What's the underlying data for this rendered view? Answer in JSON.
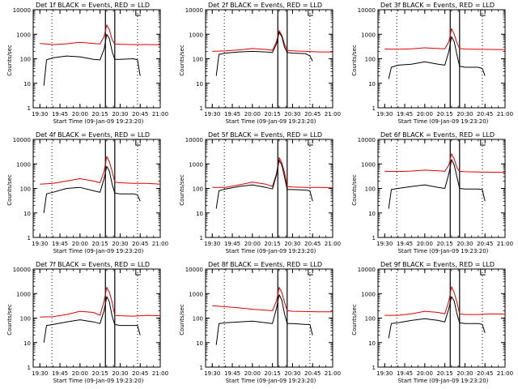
{
  "chart_data": [
    {
      "type": "line",
      "title": "Det 1f BLACK = Events, RED = LLD",
      "xlabel": "Start Time (09-Jan-09 19:23:20)",
      "ylabel": "Counts/sec",
      "yscale": "log",
      "ylim": [
        1,
        10000
      ],
      "xlim": [
        "19:25",
        "21:00"
      ],
      "x_tick_labels": [
        "19:30",
        "19:45",
        "20:00",
        "20:15",
        "20:30",
        "20:45",
        "21:00"
      ],
      "y_tick_labels": [
        "1",
        "10",
        "100",
        "1000",
        "10000"
      ],
      "flare_window": [
        "20:19",
        "20:26"
      ],
      "dotted_lines": [
        "19:39",
        "20:43"
      ],
      "series": [
        {
          "color": "#e00000",
          "x": [
            "19:30",
            "19:40",
            "19:50",
            "20:00",
            "20:10",
            "20:15",
            "20:18",
            "20:20",
            "20:22",
            "20:24",
            "20:26",
            "20:30",
            "20:40",
            "20:50",
            "21:00"
          ],
          "values": [
            420,
            380,
            410,
            470,
            420,
            400,
            800,
            2400,
            1500,
            600,
            400,
            390,
            380,
            380,
            370
          ]
        },
        {
          "color": "#000000",
          "x": [
            "19:33",
            "19:35",
            "19:40",
            "19:50",
            "20:00",
            "20:10",
            "20:15",
            "20:18",
            "20:20",
            "20:22",
            "20:24",
            "20:26",
            "20:30",
            "20:40",
            "20:43",
            "20:45"
          ],
          "values": [
            8,
            90,
            110,
            130,
            120,
            95,
            90,
            250,
            1000,
            650,
            200,
            95,
            95,
            100,
            90,
            20
          ]
        }
      ]
    },
    {
      "type": "line",
      "title": "Det 2f BLACK = Events, RED = LLD",
      "xlabel": "Start Time (09-Jan-09 19:23:20)",
      "ylabel": "Counts/sec",
      "yscale": "log",
      "ylim": [
        1,
        10000
      ],
      "xlim": [
        "19:25",
        "21:00"
      ],
      "x_tick_labels": [
        "19:30",
        "19:45",
        "20:00",
        "20:15",
        "20:30",
        "20:45",
        "21:00"
      ],
      "y_tick_labels": [
        "1",
        "10",
        "100",
        "1000",
        "10000"
      ],
      "flare_window": [
        "20:19",
        "20:26"
      ],
      "dotted_lines": [
        "19:39",
        "20:43"
      ],
      "series": [
        {
          "color": "#e00000",
          "x": [
            "19:30",
            "19:40",
            "19:50",
            "20:00",
            "20:10",
            "20:15",
            "20:18",
            "20:20",
            "20:22",
            "20:24",
            "20:26",
            "20:30",
            "20:40",
            "20:50",
            "21:00"
          ],
          "values": [
            200,
            210,
            230,
            260,
            240,
            220,
            500,
            1400,
            900,
            400,
            220,
            210,
            200,
            190,
            190
          ]
        },
        {
          "color": "#000000",
          "x": [
            "19:33",
            "19:35",
            "19:40",
            "19:50",
            "20:00",
            "20:10",
            "20:15",
            "20:18",
            "20:20",
            "20:22",
            "20:24",
            "20:26",
            "20:30",
            "20:40",
            "20:43",
            "20:45"
          ],
          "values": [
            20,
            150,
            170,
            190,
            200,
            190,
            180,
            400,
            1200,
            800,
            300,
            180,
            170,
            160,
            130,
            80
          ]
        }
      ]
    },
    {
      "type": "line",
      "title": "Det 3f BLACK = Events, RED = LLD",
      "xlabel": "Start Time (09-Jan-09 19:23:20)",
      "ylabel": "Counts/sec",
      "yscale": "log",
      "ylim": [
        1,
        10000
      ],
      "xlim": [
        "19:25",
        "21:00"
      ],
      "x_tick_labels": [
        "19:30",
        "19:45",
        "20:00",
        "20:15",
        "20:30",
        "20:45",
        "21:00"
      ],
      "y_tick_labels": [
        "1",
        "10",
        "100",
        "1000",
        "10000"
      ],
      "flare_window": [
        "20:19",
        "20:26"
      ],
      "dotted_lines": [
        "19:39",
        "20:43"
      ],
      "series": [
        {
          "color": "#e00000",
          "x": [
            "19:30",
            "19:40",
            "19:50",
            "20:00",
            "20:10",
            "20:15",
            "20:18",
            "20:20",
            "20:22",
            "20:24",
            "20:26",
            "20:30",
            "20:40",
            "20:50",
            "21:00"
          ],
          "values": [
            250,
            245,
            255,
            280,
            260,
            255,
            500,
            1700,
            1000,
            450,
            260,
            250,
            245,
            240,
            235
          ]
        },
        {
          "color": "#000000",
          "x": [
            "19:33",
            "19:35",
            "19:40",
            "19:50",
            "20:00",
            "20:10",
            "20:15",
            "20:18",
            "20:20",
            "20:22",
            "20:24",
            "20:26",
            "20:30",
            "20:40",
            "20:43",
            "20:45"
          ],
          "values": [
            15,
            45,
            55,
            60,
            75,
            60,
            55,
            200,
            800,
            500,
            150,
            50,
            45,
            45,
            40,
            20
          ]
        }
      ]
    },
    {
      "type": "line",
      "title": "Det 4f BLACK = Events, RED = LLD",
      "xlabel": "Start Time (09-Jan-09 19:23:20)",
      "ylabel": "Counts/sec",
      "yscale": "log",
      "ylim": [
        1,
        10000
      ],
      "xlim": [
        "19:25",
        "21:00"
      ],
      "x_tick_labels": [
        "19:30",
        "19:45",
        "20:00",
        "20:15",
        "20:30",
        "20:45",
        "21:00"
      ],
      "y_tick_labels": [
        "1",
        "10",
        "100",
        "1000",
        "10000"
      ],
      "flare_window": [
        "20:19",
        "20:26"
      ],
      "dotted_lines": [
        "19:39",
        "20:43"
      ],
      "series": [
        {
          "color": "#e00000",
          "x": [
            "19:30",
            "19:40",
            "19:50",
            "20:00",
            "20:10",
            "20:15",
            "20:18",
            "20:20",
            "20:22",
            "20:24",
            "20:26",
            "20:30",
            "20:40",
            "20:50",
            "21:00"
          ],
          "values": [
            150,
            160,
            200,
            250,
            200,
            170,
            500,
            2000,
            1200,
            500,
            180,
            170,
            160,
            160,
            150
          ]
        },
        {
          "color": "#000000",
          "x": [
            "19:33",
            "19:35",
            "19:40",
            "19:50",
            "20:00",
            "20:10",
            "20:15",
            "20:18",
            "20:20",
            "20:22",
            "20:24",
            "20:26",
            "20:30",
            "20:40",
            "20:43",
            "20:45"
          ],
          "values": [
            10,
            60,
            70,
            100,
            110,
            80,
            70,
            250,
            800,
            500,
            150,
            65,
            60,
            60,
            55,
            30
          ]
        }
      ]
    },
    {
      "type": "line",
      "title": "Det 5f BLACK = Events, RED = LLD",
      "xlabel": "Start Time (09-Jan-09 19:23:20)",
      "ylabel": "Counts/sec",
      "yscale": "log",
      "ylim": [
        1,
        10000
      ],
      "xlim": [
        "19:25",
        "21:00"
      ],
      "x_tick_labels": [
        "19:30",
        "19:45",
        "20:00",
        "20:15",
        "20:30",
        "20:45",
        "21:00"
      ],
      "y_tick_labels": [
        "1",
        "10",
        "100",
        "1000",
        "10000"
      ],
      "flare_window": [
        "20:19",
        "20:26"
      ],
      "dotted_lines": [
        "19:39",
        "20:43"
      ],
      "series": [
        {
          "color": "#e00000",
          "x": [
            "19:30",
            "19:40",
            "19:50",
            "20:00",
            "20:10",
            "20:15",
            "20:18",
            "20:20",
            "20:22",
            "20:24",
            "20:26",
            "20:30",
            "20:40",
            "20:50",
            "21:00"
          ],
          "values": [
            110,
            110,
            140,
            180,
            150,
            120,
            400,
            1800,
            1100,
            450,
            120,
            115,
            110,
            110,
            105
          ]
        },
        {
          "color": "#000000",
          "x": [
            "19:33",
            "19:35",
            "19:40",
            "19:50",
            "20:00",
            "20:10",
            "20:15",
            "20:18",
            "20:20",
            "20:22",
            "20:24",
            "20:26",
            "20:30",
            "20:40",
            "20:43",
            "20:45"
          ],
          "values": [
            15,
            80,
            95,
            120,
            140,
            110,
            95,
            350,
            1400,
            900,
            300,
            90,
            90,
            85,
            80,
            30
          ]
        }
      ]
    },
    {
      "type": "line",
      "title": "Det 6f BLACK = Events, RED = LLD",
      "xlabel": "Start Time (09-Jan-09 19:23:20)",
      "ylabel": "Counts/sec",
      "yscale": "log",
      "ylim": [
        1,
        10000
      ],
      "xlim": [
        "19:25",
        "21:00"
      ],
      "x_tick_labels": [
        "19:30",
        "19:45",
        "20:00",
        "20:15",
        "20:30",
        "20:45",
        "21:00"
      ],
      "y_tick_labels": [
        "1",
        "10",
        "100",
        "1000",
        "10000"
      ],
      "flare_window": [
        "20:19",
        "20:26"
      ],
      "dotted_lines": [
        "19:39",
        "20:43"
      ],
      "series": [
        {
          "color": "#e00000",
          "x": [
            "19:30",
            "19:40",
            "19:50",
            "20:00",
            "20:10",
            "20:15",
            "20:18",
            "20:20",
            "20:22",
            "20:24",
            "20:26",
            "20:30",
            "20:40",
            "20:50",
            "21:00"
          ],
          "values": [
            500,
            490,
            510,
            560,
            520,
            500,
            900,
            2600,
            1600,
            700,
            500,
            480,
            470,
            460,
            450
          ]
        },
        {
          "color": "#000000",
          "x": [
            "19:33",
            "19:35",
            "19:40",
            "19:50",
            "20:00",
            "20:10",
            "20:15",
            "20:18",
            "20:20",
            "20:22",
            "20:24",
            "20:26",
            "20:30",
            "20:40",
            "20:43",
            "20:45"
          ],
          "values": [
            15,
            90,
            100,
            120,
            140,
            110,
            100,
            400,
            1500,
            900,
            300,
            100,
            95,
            95,
            90,
            30
          ]
        }
      ]
    },
    {
      "type": "line",
      "title": "Det 7f BLACK = Events, RED = LLD",
      "xlabel": "Start Time (09-Jan-09 19:23:20)",
      "ylabel": "Counts/sec",
      "yscale": "log",
      "ylim": [
        1,
        10000
      ],
      "xlim": [
        "19:25",
        "21:00"
      ],
      "x_tick_labels": [
        "19:30",
        "19:45",
        "20:00",
        "20:15",
        "20:30",
        "20:45",
        "21:00"
      ],
      "y_tick_labels": [
        "1",
        "10",
        "100",
        "1000",
        "10000"
      ],
      "flare_window": [
        "20:19",
        "20:26"
      ],
      "dotted_lines": [
        "19:39",
        "20:43"
      ],
      "series": [
        {
          "color": "#e00000",
          "x": [
            "19:30",
            "19:40",
            "19:50",
            "20:00",
            "20:10",
            "20:15",
            "20:18",
            "20:20",
            "20:22",
            "20:24",
            "20:26",
            "20:30",
            "20:40",
            "20:50",
            "21:00"
          ],
          "values": [
            110,
            115,
            140,
            190,
            170,
            130,
            500,
            1800,
            1100,
            450,
            130,
            125,
            120,
            130,
            125
          ]
        },
        {
          "color": "#000000",
          "x": [
            "19:33",
            "19:35",
            "19:40",
            "19:50",
            "20:00",
            "20:10",
            "20:15",
            "20:18",
            "20:20",
            "20:22",
            "20:24",
            "20:26",
            "20:30",
            "20:40",
            "20:43",
            "20:45"
          ],
          "values": [
            10,
            50,
            55,
            70,
            85,
            70,
            60,
            200,
            750,
            450,
            120,
            55,
            50,
            50,
            50,
            20
          ]
        }
      ]
    },
    {
      "type": "line",
      "title": "Det 8f BLACK = Events, RED = LLD",
      "xlabel": "Start Time (09-Jan-09 19:23:20)",
      "ylabel": "Counts/sec",
      "yscale": "log",
      "ylim": [
        1,
        10000
      ],
      "xlim": [
        "19:25",
        "21:00"
      ],
      "x_tick_labels": [
        "19:30",
        "19:45",
        "20:00",
        "20:15",
        "20:30",
        "20:45",
        "21:00"
      ],
      "y_tick_labels": [
        "1",
        "10",
        "100",
        "1000",
        "10000"
      ],
      "flare_window": [
        "20:19",
        "20:26"
      ],
      "dotted_lines": [
        "19:39",
        "20:43"
      ],
      "series": [
        {
          "color": "#e00000",
          "x": [
            "19:30",
            "19:40",
            "19:50",
            "20:00",
            "20:10",
            "20:15",
            "20:18",
            "20:20",
            "20:22",
            "20:24",
            "20:26",
            "20:30",
            "20:40",
            "20:50",
            "21:00"
          ],
          "values": [
            320,
            290,
            260,
            230,
            210,
            200,
            500,
            1800,
            1100,
            450,
            200,
            190,
            185,
            180,
            180
          ]
        },
        {
          "color": "#000000",
          "x": [
            "19:33",
            "19:35",
            "19:40",
            "19:50",
            "20:00",
            "20:10",
            "20:15",
            "20:18",
            "20:20",
            "20:22",
            "20:24",
            "20:26",
            "20:30",
            "20:40",
            "20:43",
            "20:45"
          ],
          "values": [
            8,
            60,
            65,
            70,
            75,
            65,
            60,
            250,
            900,
            550,
            150,
            60,
            60,
            55,
            55,
            20
          ]
        }
      ]
    },
    {
      "type": "line",
      "title": "Det 9f BLACK = Events, RED = LLD",
      "xlabel": "Start Time (09-Jan-09 19:23:20)",
      "ylabel": "Counts/sec",
      "yscale": "log",
      "ylim": [
        1,
        10000
      ],
      "xlim": [
        "19:25",
        "21:00"
      ],
      "x_tick_labels": [
        "19:30",
        "19:45",
        "20:00",
        "20:15",
        "20:30",
        "20:45",
        "21:00"
      ],
      "y_tick_labels": [
        "1",
        "10",
        "100",
        "1000",
        "10000"
      ],
      "flare_window": [
        "20:19",
        "20:26"
      ],
      "dotted_lines": [
        "19:39",
        "20:43"
      ],
      "series": [
        {
          "color": "#e00000",
          "x": [
            "19:30",
            "19:40",
            "19:50",
            "20:00",
            "20:10",
            "20:15",
            "20:18",
            "20:20",
            "20:22",
            "20:24",
            "20:26",
            "20:30",
            "20:40",
            "20:50",
            "21:00"
          ],
          "values": [
            130,
            130,
            150,
            190,
            170,
            150,
            500,
            1900,
            1100,
            450,
            150,
            140,
            140,
            150,
            145
          ]
        },
        {
          "color": "#000000",
          "x": [
            "19:33",
            "19:35",
            "19:40",
            "19:50",
            "20:00",
            "20:10",
            "20:15",
            "20:18",
            "20:20",
            "20:22",
            "20:24",
            "20:26",
            "20:30",
            "20:40",
            "20:43",
            "20:45"
          ],
          "values": [
            15,
            60,
            65,
            80,
            95,
            80,
            70,
            250,
            750,
            500,
            150,
            65,
            60,
            60,
            55,
            25
          ]
        }
      ]
    }
  ]
}
